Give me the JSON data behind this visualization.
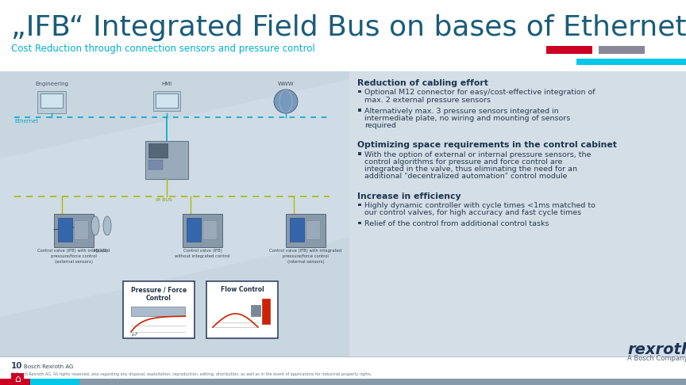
{
  "title": "„IFB“ Integrated Field Bus on bases of Ethernet technology",
  "subtitle": "Cost Reduction through connection sensors and pressure control",
  "title_color": "#1a5c7a",
  "subtitle_color": "#00b0cc",
  "bg_color": "#ccd8e2",
  "accent_red": "#cc0022",
  "accent_gray": "#888899",
  "accent_cyan": "#00c8e8",
  "section1_title": "Reduction of cabling effort",
  "section1_bullets": [
    "Optional M12 connector for easy/cost-effective integration of\nmax. 2 external pressure sensors",
    "Alternatively max. 3 pressure sensors integrated in\nintermediate plate, no wiring and mounting of sensors\nrequired"
  ],
  "section2_title": "Optimizing space requirements in the control cabinet",
  "section2_bullets": [
    "With the option of external or internal pressure sensors, the\ncontrol algorithms for pressure and force control are\nintegrated in the valve, thus eliminating the need for an\nadditional \"decentralized automation\" control module"
  ],
  "section3_title": "Increase in efficiency",
  "section3_bullets": [
    "Highly dynamic controller with cycle times <1ms matched to\nour control valves, for high accuracy and fast cycle times",
    "Relief of the control from additional control tasks"
  ],
  "section_title_color": "#1a3550",
  "bullet_color": "#2a3a50",
  "header_fontsize": 26,
  "subtitle_fontsize": 8.5,
  "section_title_fs": 7.8,
  "bullet_fs": 6.8
}
